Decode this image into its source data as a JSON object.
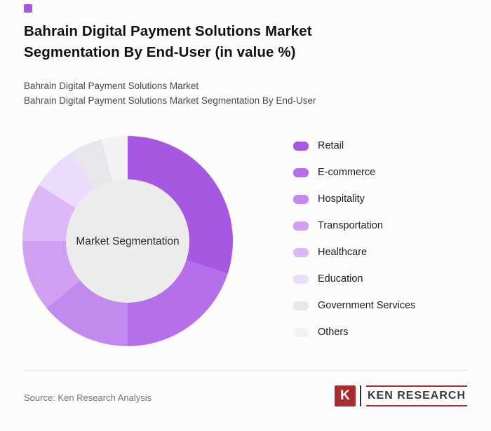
{
  "header": {
    "title": "Bahrain Digital Payment Solutions Market Segmentation By End-User (in value %)",
    "subtitle_line1": "Bahrain Digital Payment Solutions Market",
    "subtitle_line2": "Bahrain Digital Payment Solutions Market Segmentation By End-User",
    "accent_color": "#a658e3"
  },
  "chart_data": {
    "type": "pie",
    "donut": true,
    "center_label": "Market Segmentation",
    "legend_position": "right",
    "categories": [
      "Retail",
      "E-commerce",
      "Hospitality",
      "Transportation",
      "Healthcare",
      "Education",
      "Government Services",
      "Others"
    ],
    "values": [
      30,
      20,
      14,
      11,
      9,
      7,
      5,
      4
    ],
    "colors": [
      "#a658e3",
      "#b46fe9",
      "#c289ee",
      "#cf9ff2",
      "#dcb9f6",
      "#ecdcfb",
      "#e8e6ea",
      "#f2f1f3"
    ],
    "inner_circle_color": "#ececec"
  },
  "footer": {
    "source": "Source: Ken Research Analysis",
    "logo_letter": "K",
    "logo_text": "KEN RESEARCH"
  }
}
